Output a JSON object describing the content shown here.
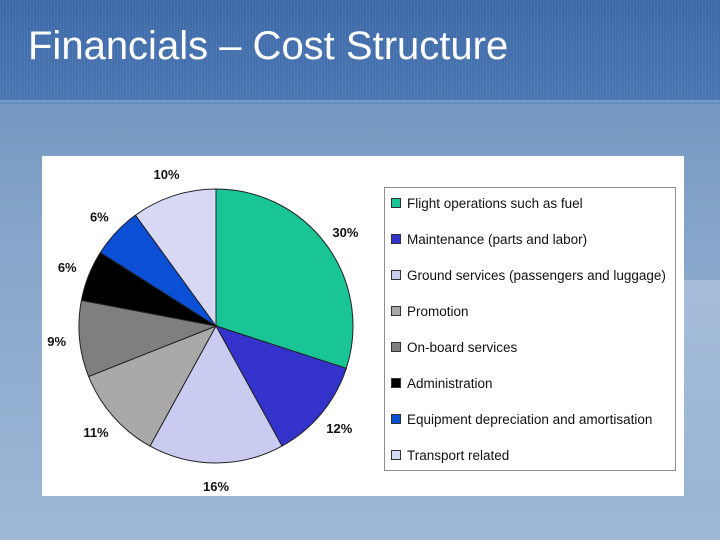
{
  "slide": {
    "title": "Financials – Cost Structure"
  },
  "chart_data": {
    "type": "pie",
    "title": "",
    "slices": [
      {
        "label": "Flight operations such as fuel",
        "value": 30,
        "display": "30%",
        "color": "#19c495"
      },
      {
        "label": "Maintenance (parts and labor)",
        "value": 12,
        "display": "12%",
        "color": "#3333cc"
      },
      {
        "label": "Ground services (passengers and luggage)",
        "value": 16,
        "display": "16%",
        "color": "#c9cbf0"
      },
      {
        "label": "Promotion",
        "value": 11,
        "display": "11%",
        "color": "#a9a9a9"
      },
      {
        "label": "On-board services",
        "value": 9,
        "display": "9%",
        "color": "#7f7f7f"
      },
      {
        "label": "Administration",
        "value": 6,
        "display": "6%",
        "color": "#000000"
      },
      {
        "label": "Equipment depreciation and amortisation",
        "value": 6,
        "display": "6%",
        "color": "#0a4fd6"
      },
      {
        "label": "Transport related",
        "value": 10,
        "display": "10%",
        "color": "#d6d8f4"
      }
    ],
    "legend_position": "right"
  }
}
